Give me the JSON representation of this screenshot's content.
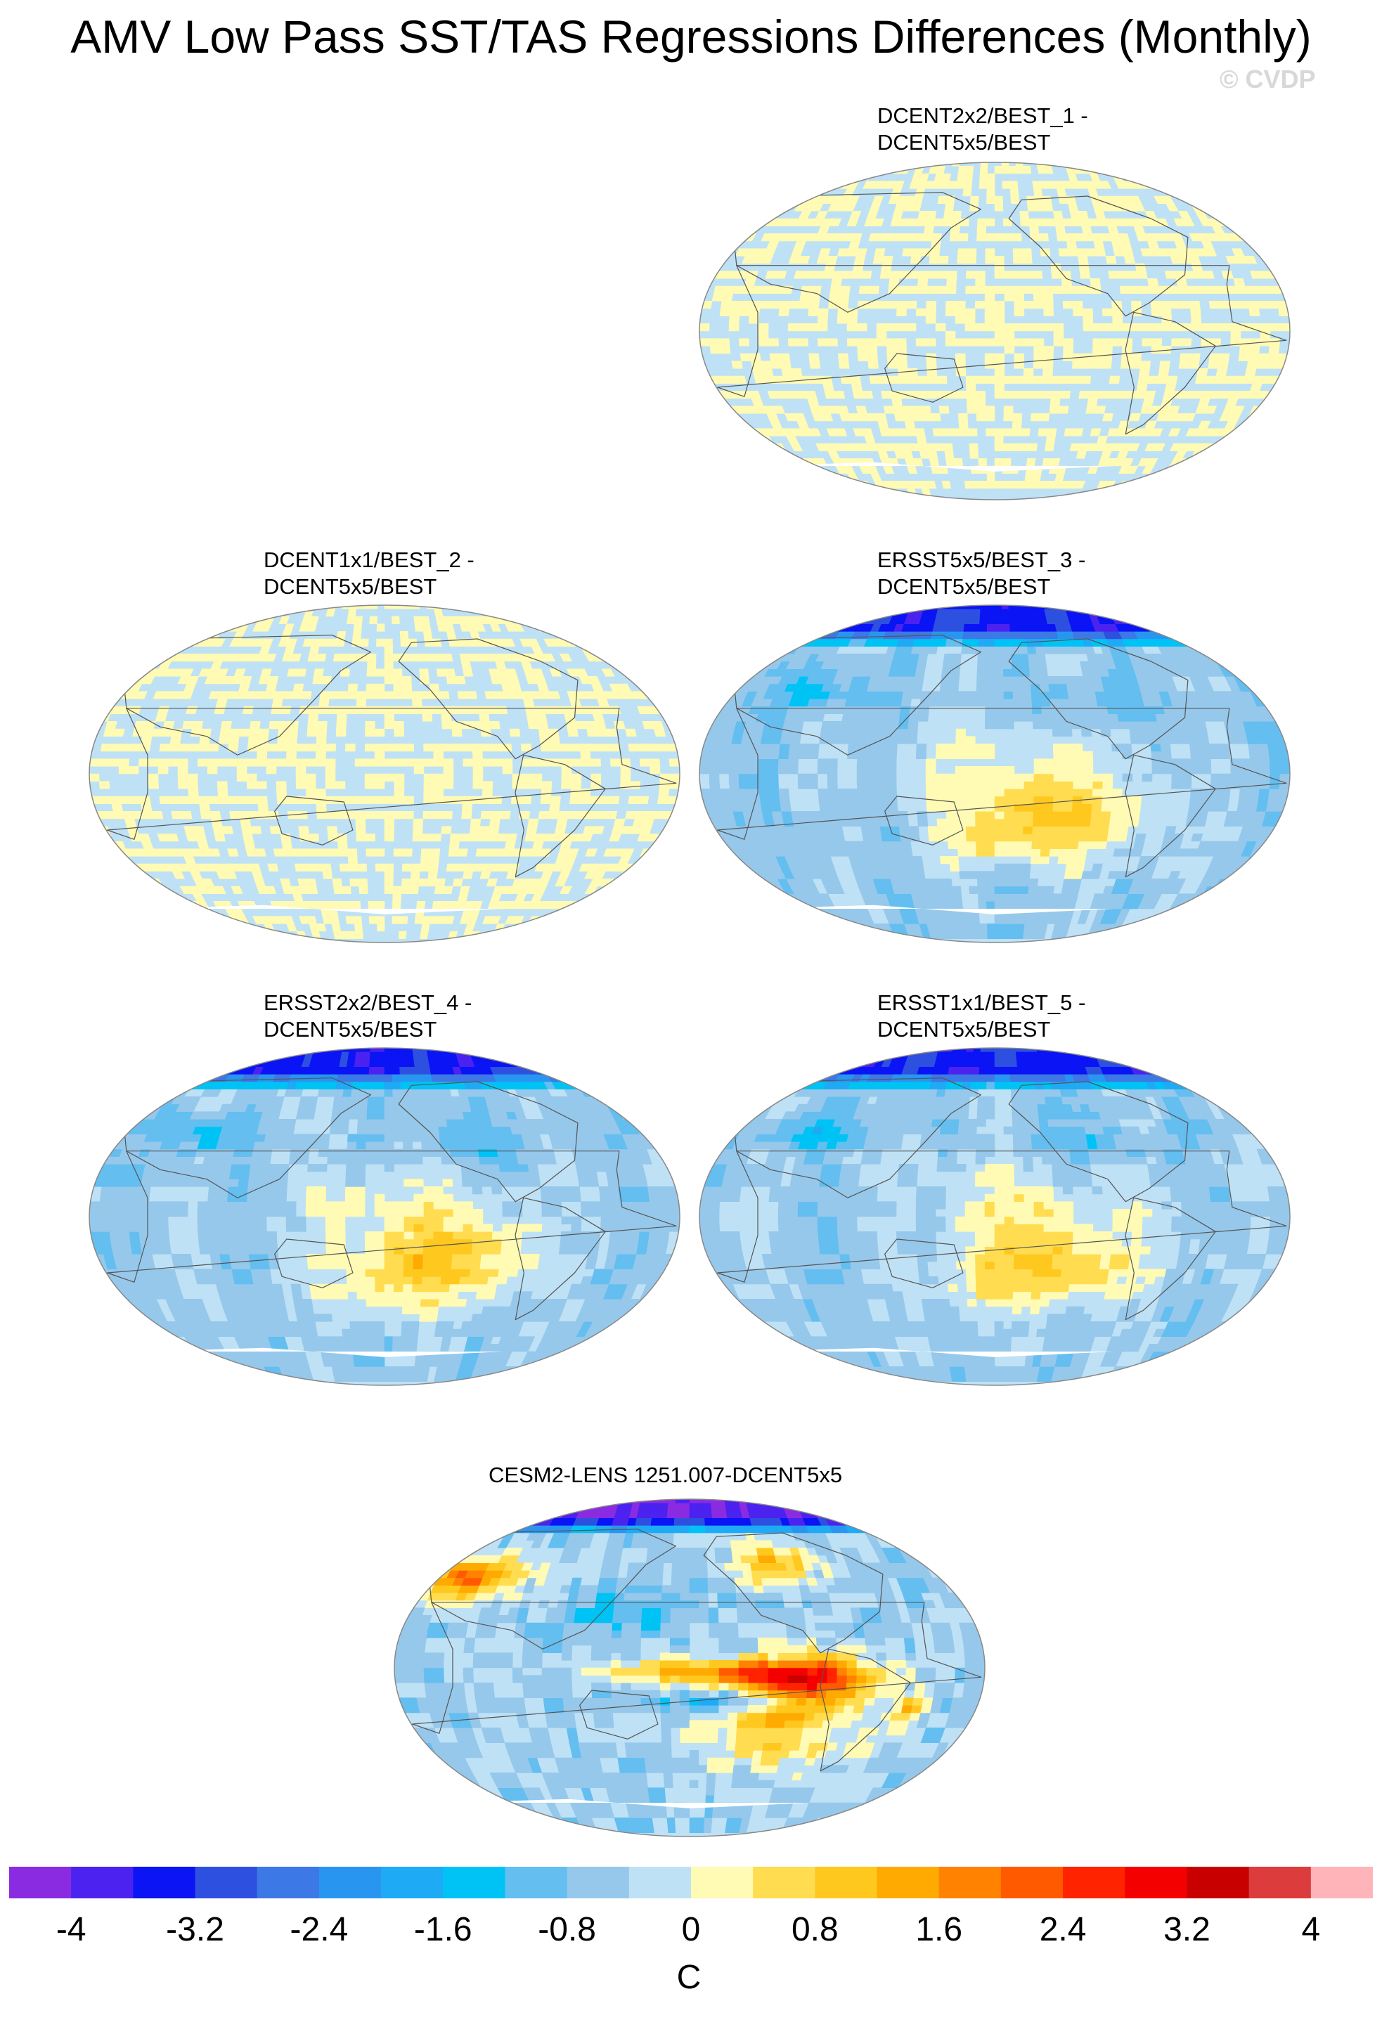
{
  "title": "AMV Low Pass SST/TAS Regressions Differences (Monthly)",
  "credit": "© CVDP",
  "panels": [
    {
      "line1": "DCENT2x2/BEST_1 -",
      "line2": "DCENT5x5/BEST",
      "pattern": "near-zero"
    },
    {
      "line1": "DCENT1x1/BEST_2 -",
      "line2": "DCENT5x5/BEST",
      "pattern": "near-zero"
    },
    {
      "line1": "ERSST5x5/BEST_3 -",
      "line2": "DCENT5x5/BEST",
      "pattern": "ersst"
    },
    {
      "line1": "ERSST2x2/BEST_4 -",
      "line2": "DCENT5x5/BEST",
      "pattern": "ersst"
    },
    {
      "line1": "ERSST1x1/BEST_5 -",
      "line2": "DCENT5x5/BEST",
      "pattern": "ersst"
    },
    {
      "line1": "CESM2-LENS 1251.007-DCENT5x5",
      "line2": "",
      "pattern": "cesm"
    }
  ],
  "colorbar": {
    "colors": [
      "#8a2be2",
      "#4b22f0",
      "#0a14f5",
      "#2d50e0",
      "#3c78e6",
      "#2896f0",
      "#1eaaf5",
      "#00c3f5",
      "#64bef0",
      "#96c8eb",
      "#bee1f5",
      "#fffab4",
      "#ffdc50",
      "#ffc81e",
      "#ffaa00",
      "#ff8200",
      "#ff5a00",
      "#ff2300",
      "#f50000",
      "#c80000",
      "#dc3c3c",
      "#ffb4b9"
    ],
    "tick_labels": [
      "-4",
      "-3.2",
      "-2.4",
      "-1.6",
      "-0.8",
      "0",
      "0.8",
      "1.6",
      "2.4",
      "3.2",
      "4"
    ],
    "units": "C"
  }
}
